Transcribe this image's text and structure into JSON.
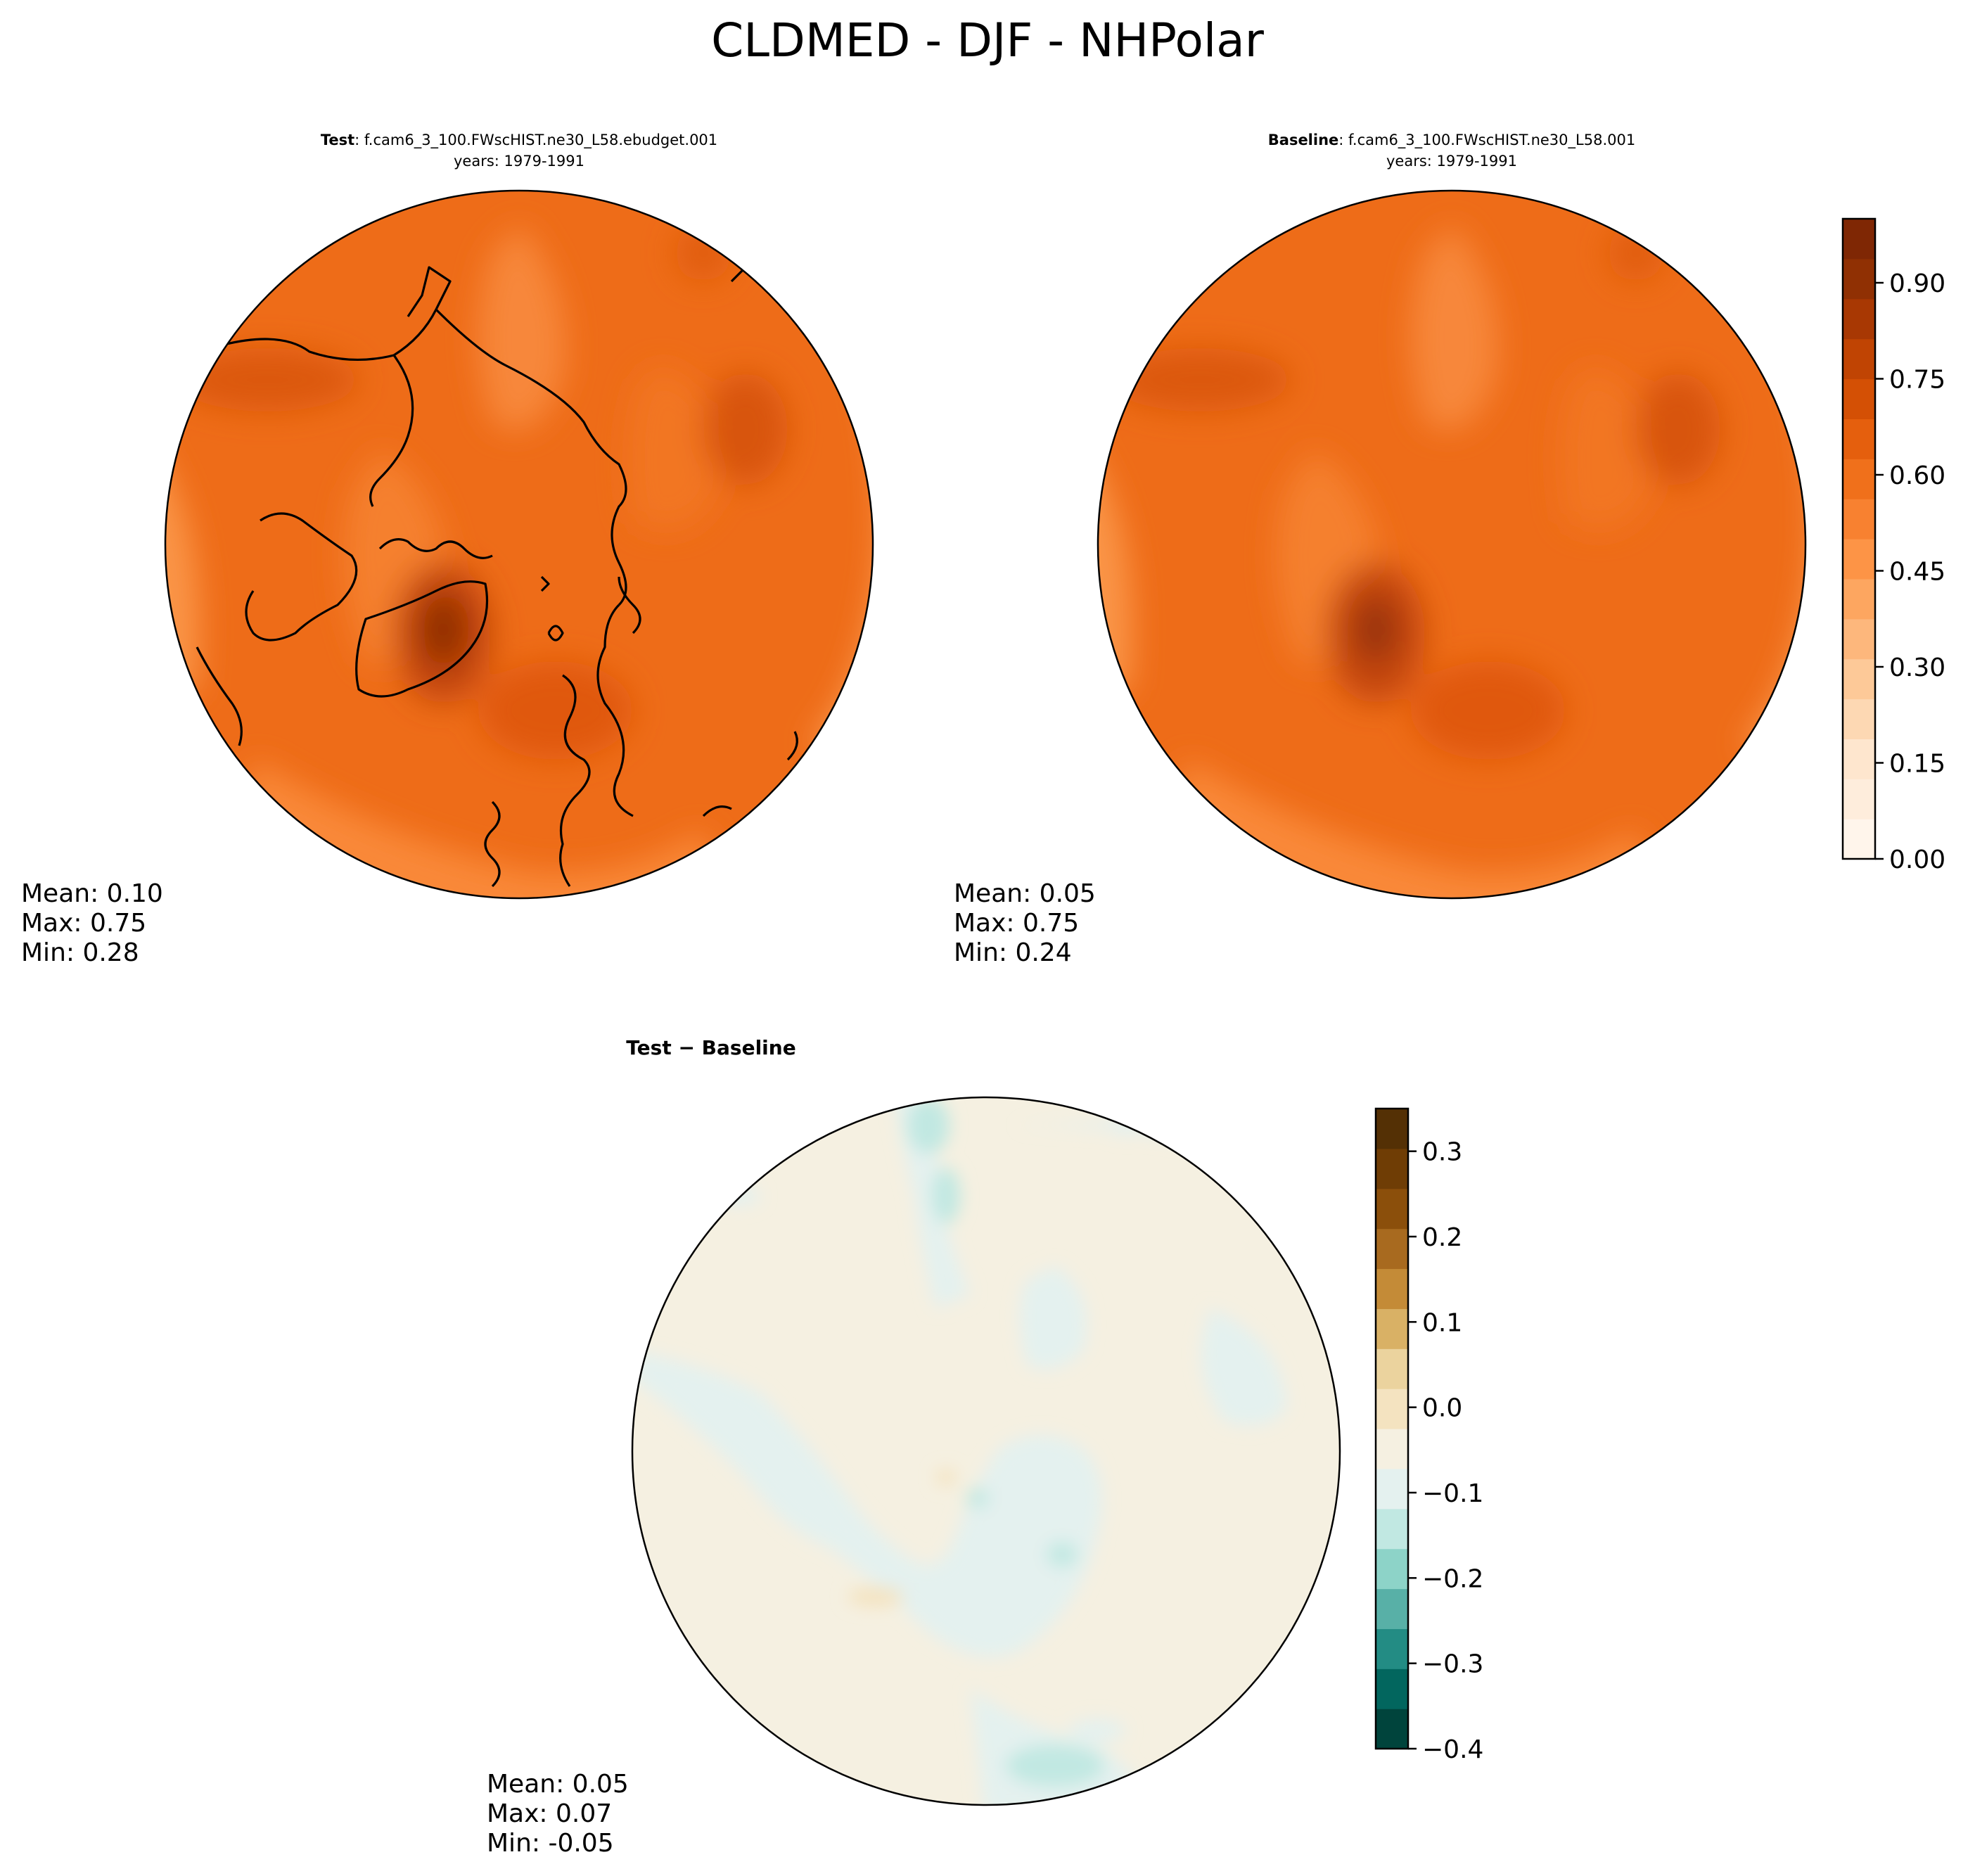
{
  "figure": {
    "title": "CLDMED - DJF - NHPolar"
  },
  "panels": {
    "test": {
      "label": "Test",
      "case": ": f.cam6_3_100.FWscHIST.ne30_L58.ebudget.001",
      "years": "years: 1979-1991",
      "stats": {
        "mean": "Mean:  0.10",
        "max": "Max:  0.75",
        "min": "Min:  0.28"
      }
    },
    "baseline": {
      "label": "Baseline",
      "case": ": f.cam6_3_100.FWscHIST.ne30_L58.001",
      "years": "years: 1979-1991",
      "stats": {
        "mean": "Mean:  0.05",
        "max": "Max:  0.75",
        "min": "Min:  0.24"
      }
    },
    "diff": {
      "title": "Test − Baseline",
      "stats": {
        "mean": "Mean:  0.05",
        "max": "Max:  0.07",
        "min": "Min: -0.05"
      }
    }
  },
  "colorbars": {
    "main": {
      "ticks": [
        "0.00",
        "0.15",
        "0.30",
        "0.45",
        "0.60",
        "0.75",
        "0.90"
      ],
      "colors": [
        "#fff5eb",
        "#feeddc",
        "#fee6ce",
        "#fdd8b3",
        "#fdc998",
        "#fdb77c",
        "#fda660",
        "#fd9446",
        "#f88130",
        "#f0701b",
        "#e55f0d",
        "#d45005",
        "#c04403",
        "#a83803",
        "#903003",
        "#7f2704"
      ]
    },
    "diff": {
      "ticks": [
        "0.3",
        "0.2",
        "0.1",
        "0.0",
        "−0.1",
        "−0.2",
        "−0.3",
        "−0.4"
      ],
      "colors": [
        "#00443c",
        "#02665e",
        "#238c84",
        "#58b0a7",
        "#8dd3c8",
        "#c1e8e2",
        "#e4f1ef",
        "#f5f0e1",
        "#f4e3c0",
        "#ebd39e",
        "#d9b165",
        "#c48b37",
        "#a86a1f",
        "#8b4f0b",
        "#6f3d05",
        "#543005"
      ]
    }
  },
  "chart_data": {
    "type": "heatmap",
    "title": "CLDMED - DJF - NHPolar",
    "projection": "north polar stereographic",
    "panels": [
      {
        "name": "Test",
        "case": "f.cam6_3_100.FWscHIST.ne30_L58.ebudget.001",
        "years": "1979-1991",
        "mean": 0.1,
        "max": 0.75,
        "min": 0.28,
        "colorbar_range": [
          0.0,
          1.0
        ]
      },
      {
        "name": "Baseline",
        "case": "f.cam6_3_100.FWscHIST.ne30_L58.001",
        "years": "1979-1991",
        "mean": 0.05,
        "max": 0.75,
        "min": 0.24,
        "colorbar_range": [
          0.0,
          1.0
        ]
      },
      {
        "name": "Test − Baseline",
        "mean": 0.05,
        "max": 0.07,
        "min": -0.05,
        "colorbar_range": [
          -0.4,
          0.35
        ]
      }
    ]
  }
}
